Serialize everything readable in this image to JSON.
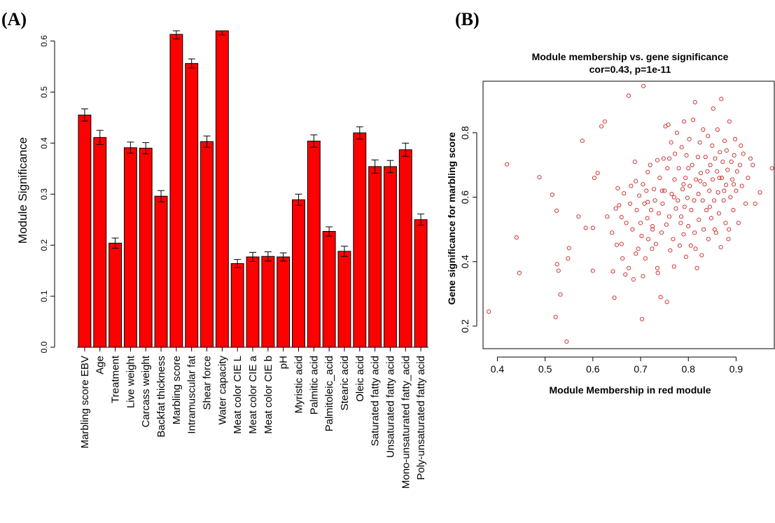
{
  "panel_a": {
    "label": "(A)"
  },
  "panel_b": {
    "label": "(B)"
  },
  "colors": {
    "bar_fill": "#ff0000",
    "bar_edge": "#000000",
    "point": "#cc2222"
  },
  "chart_data": [
    {
      "type": "bar",
      "ylabel": "Module Significance",
      "xlabel": "",
      "ylim": [
        0,
        0.62
      ],
      "yticks": [
        0.0,
        0.1,
        0.2,
        0.3,
        0.4,
        0.5,
        0.6
      ],
      "ytick_labels": [
        "0.0",
        "0.1",
        "0.2",
        "0.3",
        "0.4",
        "0.5",
        "0.6"
      ],
      "error_bars": true,
      "categories": [
        "Marbling score EBV",
        "Age",
        "Treatment",
        "Live weight",
        "Carcass weight",
        "Backfat thickness",
        "Marbling score",
        "Intramuscular fat",
        "Shear force",
        "Water capacity",
        "Meat color CIE L",
        "Meat color CIE a",
        "Meat color CIE b",
        "pH",
        "Myristic acid",
        "Palmitic acid",
        "Palmitoleic_acid",
        "Stearic acid",
        "Oleic acid",
        "Saturated fatty acid",
        "Unsaturated fatty acid",
        "Mono-unsaturated fatty_acid",
        "Poly-unsaturated fatty acid"
      ],
      "values": [
        0.455,
        0.411,
        0.204,
        0.391,
        0.39,
        0.296,
        0.613,
        0.556,
        0.403,
        0.62,
        0.164,
        0.177,
        0.178,
        0.177,
        0.289,
        0.404,
        0.227,
        0.188,
        0.42,
        0.354,
        0.354,
        0.387,
        0.25
      ],
      "errors": [
        0.012,
        0.014,
        0.01,
        0.011,
        0.011,
        0.011,
        0.009,
        0.009,
        0.011,
        0.008,
        0.008,
        0.009,
        0.009,
        0.008,
        0.011,
        0.012,
        0.009,
        0.01,
        0.012,
        0.013,
        0.012,
        0.013,
        0.011
      ]
    },
    {
      "type": "scatter",
      "title": "Module membership vs. gene significance",
      "subtitle": "cor=0.43, p=1e-11",
      "xlabel": "Module Membership in red module",
      "ylabel": "Gene significance for marbling score",
      "xlim": [
        0.37,
        0.98
      ],
      "ylim": [
        0.13,
        0.96
      ],
      "xticks": [
        0.4,
        0.5,
        0.6,
        0.7,
        0.8,
        0.9
      ],
      "xtick_labels": [
        "0.4",
        "0.5",
        "0.6",
        "0.7",
        "0.8",
        "0.9"
      ],
      "yticks": [
        0.2,
        0.4,
        0.6,
        0.8
      ],
      "ytick_labels": [
        "0.2",
        "0.4",
        "0.6",
        "0.8"
      ],
      "points": [
        [
          0.382,
          0.245
        ],
        [
          0.42,
          0.702
        ],
        [
          0.44,
          0.475
        ],
        [
          0.446,
          0.365
        ],
        [
          0.488,
          0.662
        ],
        [
          0.515,
          0.608
        ],
        [
          0.522,
          0.228
        ],
        [
          0.524,
          0.558
        ],
        [
          0.525,
          0.392
        ],
        [
          0.532,
          0.298
        ],
        [
          0.528,
          0.372
        ],
        [
          0.545,
          0.152
        ],
        [
          0.55,
          0.442
        ],
        [
          0.548,
          0.41
        ],
        [
          0.57,
          0.54
        ],
        [
          0.578,
          0.775
        ],
        [
          0.585,
          0.505
        ],
        [
          0.6,
          0.372
        ],
        [
          0.6,
          0.505
        ],
        [
          0.603,
          0.66
        ],
        [
          0.61,
          0.675
        ],
        [
          0.618,
          0.82
        ],
        [
          0.625,
          0.835
        ],
        [
          0.63,
          0.54
        ],
        [
          0.64,
          0.49
        ],
        [
          0.642,
          0.37
        ],
        [
          0.645,
          0.288
        ],
        [
          0.648,
          0.565
        ],
        [
          0.65,
          0.452
        ],
        [
          0.652,
          0.628
        ],
        [
          0.655,
          0.575
        ],
        [
          0.66,
          0.538
        ],
        [
          0.662,
          0.41
        ],
        [
          0.665,
          0.612
        ],
        [
          0.668,
          0.36
        ],
        [
          0.67,
          0.52
        ],
        [
          0.675,
          0.915
        ],
        [
          0.678,
          0.58
        ],
        [
          0.68,
          0.635
        ],
        [
          0.683,
          0.5
        ],
        [
          0.685,
          0.345
        ],
        [
          0.688,
          0.71
        ],
        [
          0.69,
          0.65
        ],
        [
          0.692,
          0.56
        ],
        [
          0.695,
          0.44
        ],
        [
          0.697,
          0.605
        ],
        [
          0.7,
          0.52
        ],
        [
          0.702,
          0.48
        ],
        [
          0.703,
          0.222
        ],
        [
          0.705,
          0.355
        ],
        [
          0.706,
          0.945
        ],
        [
          0.708,
          0.58
        ],
        [
          0.71,
          0.41
        ],
        [
          0.712,
          0.62
        ],
        [
          0.714,
          0.535
        ],
        [
          0.715,
          0.678
        ],
        [
          0.716,
          0.47
        ],
        [
          0.72,
          0.7
        ],
        [
          0.722,
          0.56
        ],
        [
          0.724,
          0.44
        ],
        [
          0.725,
          0.51
        ],
        [
          0.728,
          0.625
        ],
        [
          0.73,
          0.59
        ],
        [
          0.732,
          0.455
        ],
        [
          0.735,
          0.715
        ],
        [
          0.736,
          0.365
        ],
        [
          0.738,
          0.55
        ],
        [
          0.74,
          0.66
        ],
        [
          0.742,
          0.29
        ],
        [
          0.744,
          0.49
        ],
        [
          0.746,
          0.58
        ],
        [
          0.748,
          0.72
        ],
        [
          0.75,
          0.62
        ],
        [
          0.752,
          0.82
        ],
        [
          0.754,
          0.515
        ],
        [
          0.755,
          0.275
        ],
        [
          0.756,
          0.69
        ],
        [
          0.758,
          0.825
        ],
        [
          0.76,
          0.54
        ],
        [
          0.762,
          0.435
        ],
        [
          0.764,
          0.77
        ],
        [
          0.765,
          0.61
        ],
        [
          0.768,
          0.47
        ],
        [
          0.77,
          0.385
        ],
        [
          0.771,
          0.655
        ],
        [
          0.772,
          0.735
        ],
        [
          0.774,
          0.565
        ],
        [
          0.776,
          0.8
        ],
        [
          0.778,
          0.59
        ],
        [
          0.78,
          0.69
        ],
        [
          0.782,
          0.45
        ],
        [
          0.784,
          0.52
        ],
        [
          0.786,
          0.755
        ],
        [
          0.788,
          0.625
        ],
        [
          0.79,
          0.485
        ],
        [
          0.791,
          0.835
        ],
        [
          0.792,
          0.57
        ],
        [
          0.794,
          0.66
        ],
        [
          0.795,
          0.415
        ],
        [
          0.796,
          0.73
        ],
        [
          0.798,
          0.598
        ],
        [
          0.8,
          0.51
        ],
        [
          0.802,
          0.78
        ],
        [
          0.803,
          0.635
        ],
        [
          0.805,
          0.45
        ],
        [
          0.806,
          0.56
        ],
        [
          0.808,
          0.7
        ],
        [
          0.81,
          0.84
        ],
        [
          0.812,
          0.59
        ],
        [
          0.813,
          0.49
        ],
        [
          0.814,
          0.895
        ],
        [
          0.816,
          0.655
        ],
        [
          0.818,
          0.38
        ],
        [
          0.82,
          0.725
        ],
        [
          0.821,
          0.61
        ],
        [
          0.822,
          0.53
        ],
        [
          0.824,
          0.77
        ],
        [
          0.826,
          0.675
        ],
        [
          0.828,
          0.42
        ],
        [
          0.83,
          0.59
        ],
        [
          0.831,
          0.81
        ],
        [
          0.832,
          0.5
        ],
        [
          0.834,
          0.64
        ],
        [
          0.836,
          0.725
        ],
        [
          0.838,
          0.56
        ],
        [
          0.84,
          0.68
        ],
        [
          0.841,
          0.79
        ],
        [
          0.842,
          0.47
        ],
        [
          0.844,
          0.62
        ],
        [
          0.846,
          0.7
        ],
        [
          0.848,
          0.535
        ],
        [
          0.85,
          0.76
        ],
        [
          0.851,
          0.655
        ],
        [
          0.852,
          0.875
        ],
        [
          0.854,
          0.59
        ],
        [
          0.856,
          0.72
        ],
        [
          0.858,
          0.49
        ],
        [
          0.86,
          0.68
        ],
        [
          0.861,
          0.81
        ],
        [
          0.862,
          0.615
        ],
        [
          0.864,
          0.55
        ],
        [
          0.866,
          0.74
        ],
        [
          0.868,
          0.445
        ],
        [
          0.869,
          0.905
        ],
        [
          0.87,
          0.66
        ],
        [
          0.872,
          0.71
        ],
        [
          0.874,
          0.59
        ],
        [
          0.876,
          0.775
        ],
        [
          0.878,
          0.52
        ],
        [
          0.879,
          0.638
        ],
        [
          0.88,
          0.745
        ],
        [
          0.882,
          0.685
        ],
        [
          0.884,
          0.47
        ],
        [
          0.886,
          0.835
        ],
        [
          0.888,
          0.6
        ],
        [
          0.89,
          0.71
        ],
        [
          0.892,
          0.655
        ],
        [
          0.894,
          0.56
        ],
        [
          0.896,
          0.73
        ],
        [
          0.898,
          0.78
        ],
        [
          0.9,
          0.62
        ],
        [
          0.902,
          0.68
        ],
        [
          0.905,
          0.52
        ],
        [
          0.908,
          0.7
        ],
        [
          0.912,
          0.635
        ],
        [
          0.915,
          0.735
        ],
        [
          0.92,
          0.58
        ],
        [
          0.925,
          0.66
        ],
        [
          0.93,
          0.72
        ],
        [
          0.935,
          0.7
        ],
        [
          0.94,
          0.58
        ],
        [
          0.95,
          0.615
        ],
        [
          0.975,
          0.69
        ],
        [
          0.66,
          0.455
        ],
        [
          0.675,
          0.38
        ],
        [
          0.69,
          0.425
        ],
        [
          0.705,
          0.64
        ],
        [
          0.715,
          0.585
        ],
        [
          0.725,
          0.5
        ],
        [
          0.735,
          0.38
        ],
        [
          0.745,
          0.62
        ],
        [
          0.76,
          0.72
        ],
        [
          0.77,
          0.6
        ],
        [
          0.785,
          0.54
        ],
        [
          0.79,
          0.64
        ],
        [
          0.8,
          0.69
        ],
        [
          0.815,
          0.44
        ],
        [
          0.825,
          0.65
        ],
        [
          0.845,
          0.57
        ],
        [
          0.855,
          0.5
        ],
        [
          0.865,
          0.66
        ],
        [
          0.875,
          0.62
        ],
        [
          0.885,
          0.5
        ],
        [
          0.895,
          0.64
        ],
        [
          0.91,
          0.76
        ]
      ]
    }
  ]
}
